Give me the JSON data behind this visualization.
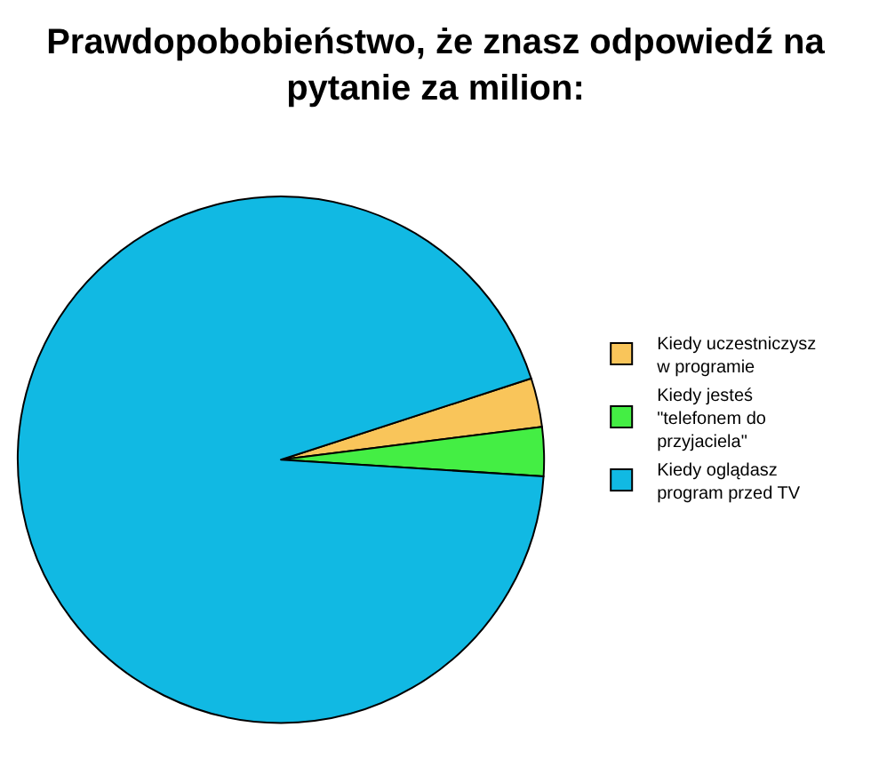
{
  "chart_data": {
    "type": "pie",
    "title": "Prawdopobobieństwo, że znasz odpowiedź na\npytanie za milion:",
    "categories": [
      "Kiedy uczestniczysz\nw programie",
      "Kiedy jesteś\n\"telefonem do\nprzyjaciela\"",
      "Kiedy oglądasz\nprogram przed TV"
    ],
    "values": [
      3,
      3,
      94
    ],
    "colors": [
      "#f9c55a",
      "#44ee44",
      "#11b9e3"
    ],
    "legend": "right"
  }
}
